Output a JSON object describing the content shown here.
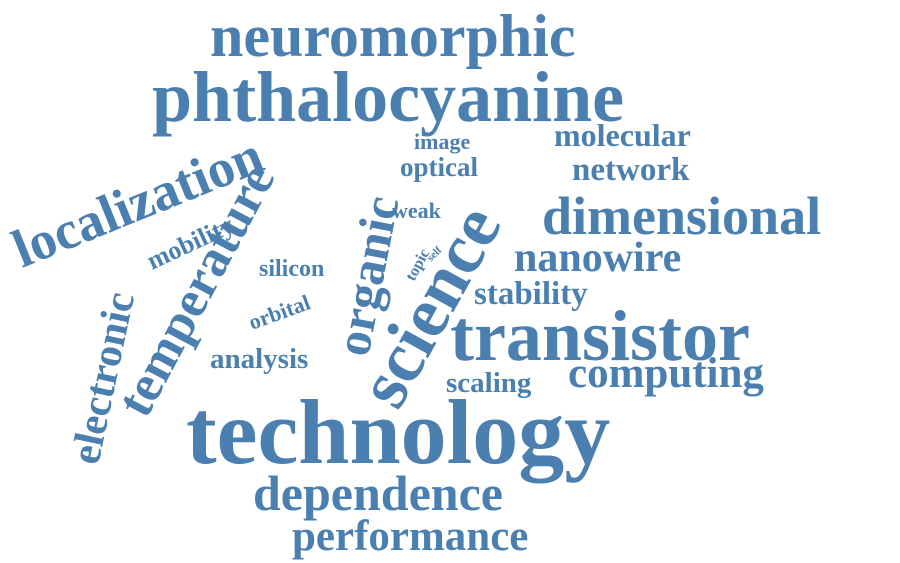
{
  "colors": {
    "word": "#4a7fb0",
    "background": "#ffffff"
  },
  "words": [
    "neuromorphic",
    "phthalocyanine",
    "localization",
    "temperature",
    "organic",
    "science",
    "molecular",
    "image",
    "optical",
    "network",
    "dimensional",
    "mobility",
    "weak",
    "electronic",
    "silicon",
    "topic",
    "self",
    "nanowire",
    "stability",
    "orbital",
    "transistor",
    "analysis",
    "scaling",
    "computing",
    "technology",
    "dependence",
    "performance"
  ]
}
